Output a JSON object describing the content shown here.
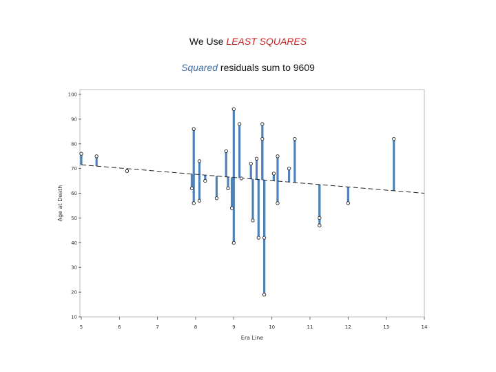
{
  "heading": {
    "prefix": "We Use ",
    "highlight": "LEAST SQUARES"
  },
  "subheading": {
    "highlight": "Squared",
    "middle": " residuals sum to ",
    "value": "9609"
  },
  "colors": {
    "residual": "#4f82b8",
    "highlight_red": "#cc1f1f",
    "highlight_blue": "#3f6fa8"
  },
  "chart_data": {
    "type": "scatter",
    "xlabel": "Era Line",
    "ylabel": "Age at Death",
    "xlim": [
      5,
      14
    ],
    "ylim": [
      10,
      100
    ],
    "x_ticks": [
      5,
      6,
      7,
      8,
      9,
      10,
      11,
      12,
      13,
      14
    ],
    "y_ticks": [
      10,
      20,
      30,
      40,
      50,
      60,
      70,
      80,
      90,
      100
    ],
    "regression_line": {
      "x": [
        5,
        14
      ],
      "y": [
        71.5,
        60
      ]
    },
    "points": [
      {
        "x": 5.0,
        "y": 76
      },
      {
        "x": 5.4,
        "y": 75
      },
      {
        "x": 6.2,
        "y": 69
      },
      {
        "x": 7.9,
        "y": 62
      },
      {
        "x": 7.95,
        "y": 86
      },
      {
        "x": 7.95,
        "y": 56
      },
      {
        "x": 8.1,
        "y": 73
      },
      {
        "x": 8.1,
        "y": 57
      },
      {
        "x": 8.25,
        "y": 65
      },
      {
        "x": 8.55,
        "y": 58
      },
      {
        "x": 8.8,
        "y": 77
      },
      {
        "x": 8.85,
        "y": 62
      },
      {
        "x": 8.95,
        "y": 54
      },
      {
        "x": 9.0,
        "y": 94
      },
      {
        "x": 9.0,
        "y": 40
      },
      {
        "x": 9.15,
        "y": 88
      },
      {
        "x": 9.2,
        "y": 66
      },
      {
        "x": 9.45,
        "y": 72
      },
      {
        "x": 9.5,
        "y": 49
      },
      {
        "x": 9.6,
        "y": 74
      },
      {
        "x": 9.65,
        "y": 42
      },
      {
        "x": 9.75,
        "y": 88
      },
      {
        "x": 9.75,
        "y": 82
      },
      {
        "x": 9.8,
        "y": 42
      },
      {
        "x": 9.8,
        "y": 19
      },
      {
        "x": 10.05,
        "y": 68
      },
      {
        "x": 10.15,
        "y": 75
      },
      {
        "x": 10.15,
        "y": 56
      },
      {
        "x": 10.45,
        "y": 70
      },
      {
        "x": 10.6,
        "y": 82
      },
      {
        "x": 11.25,
        "y": 50
      },
      {
        "x": 11.25,
        "y": 47
      },
      {
        "x": 12.0,
        "y": 56
      },
      {
        "x": 13.2,
        "y": 82
      }
    ]
  }
}
